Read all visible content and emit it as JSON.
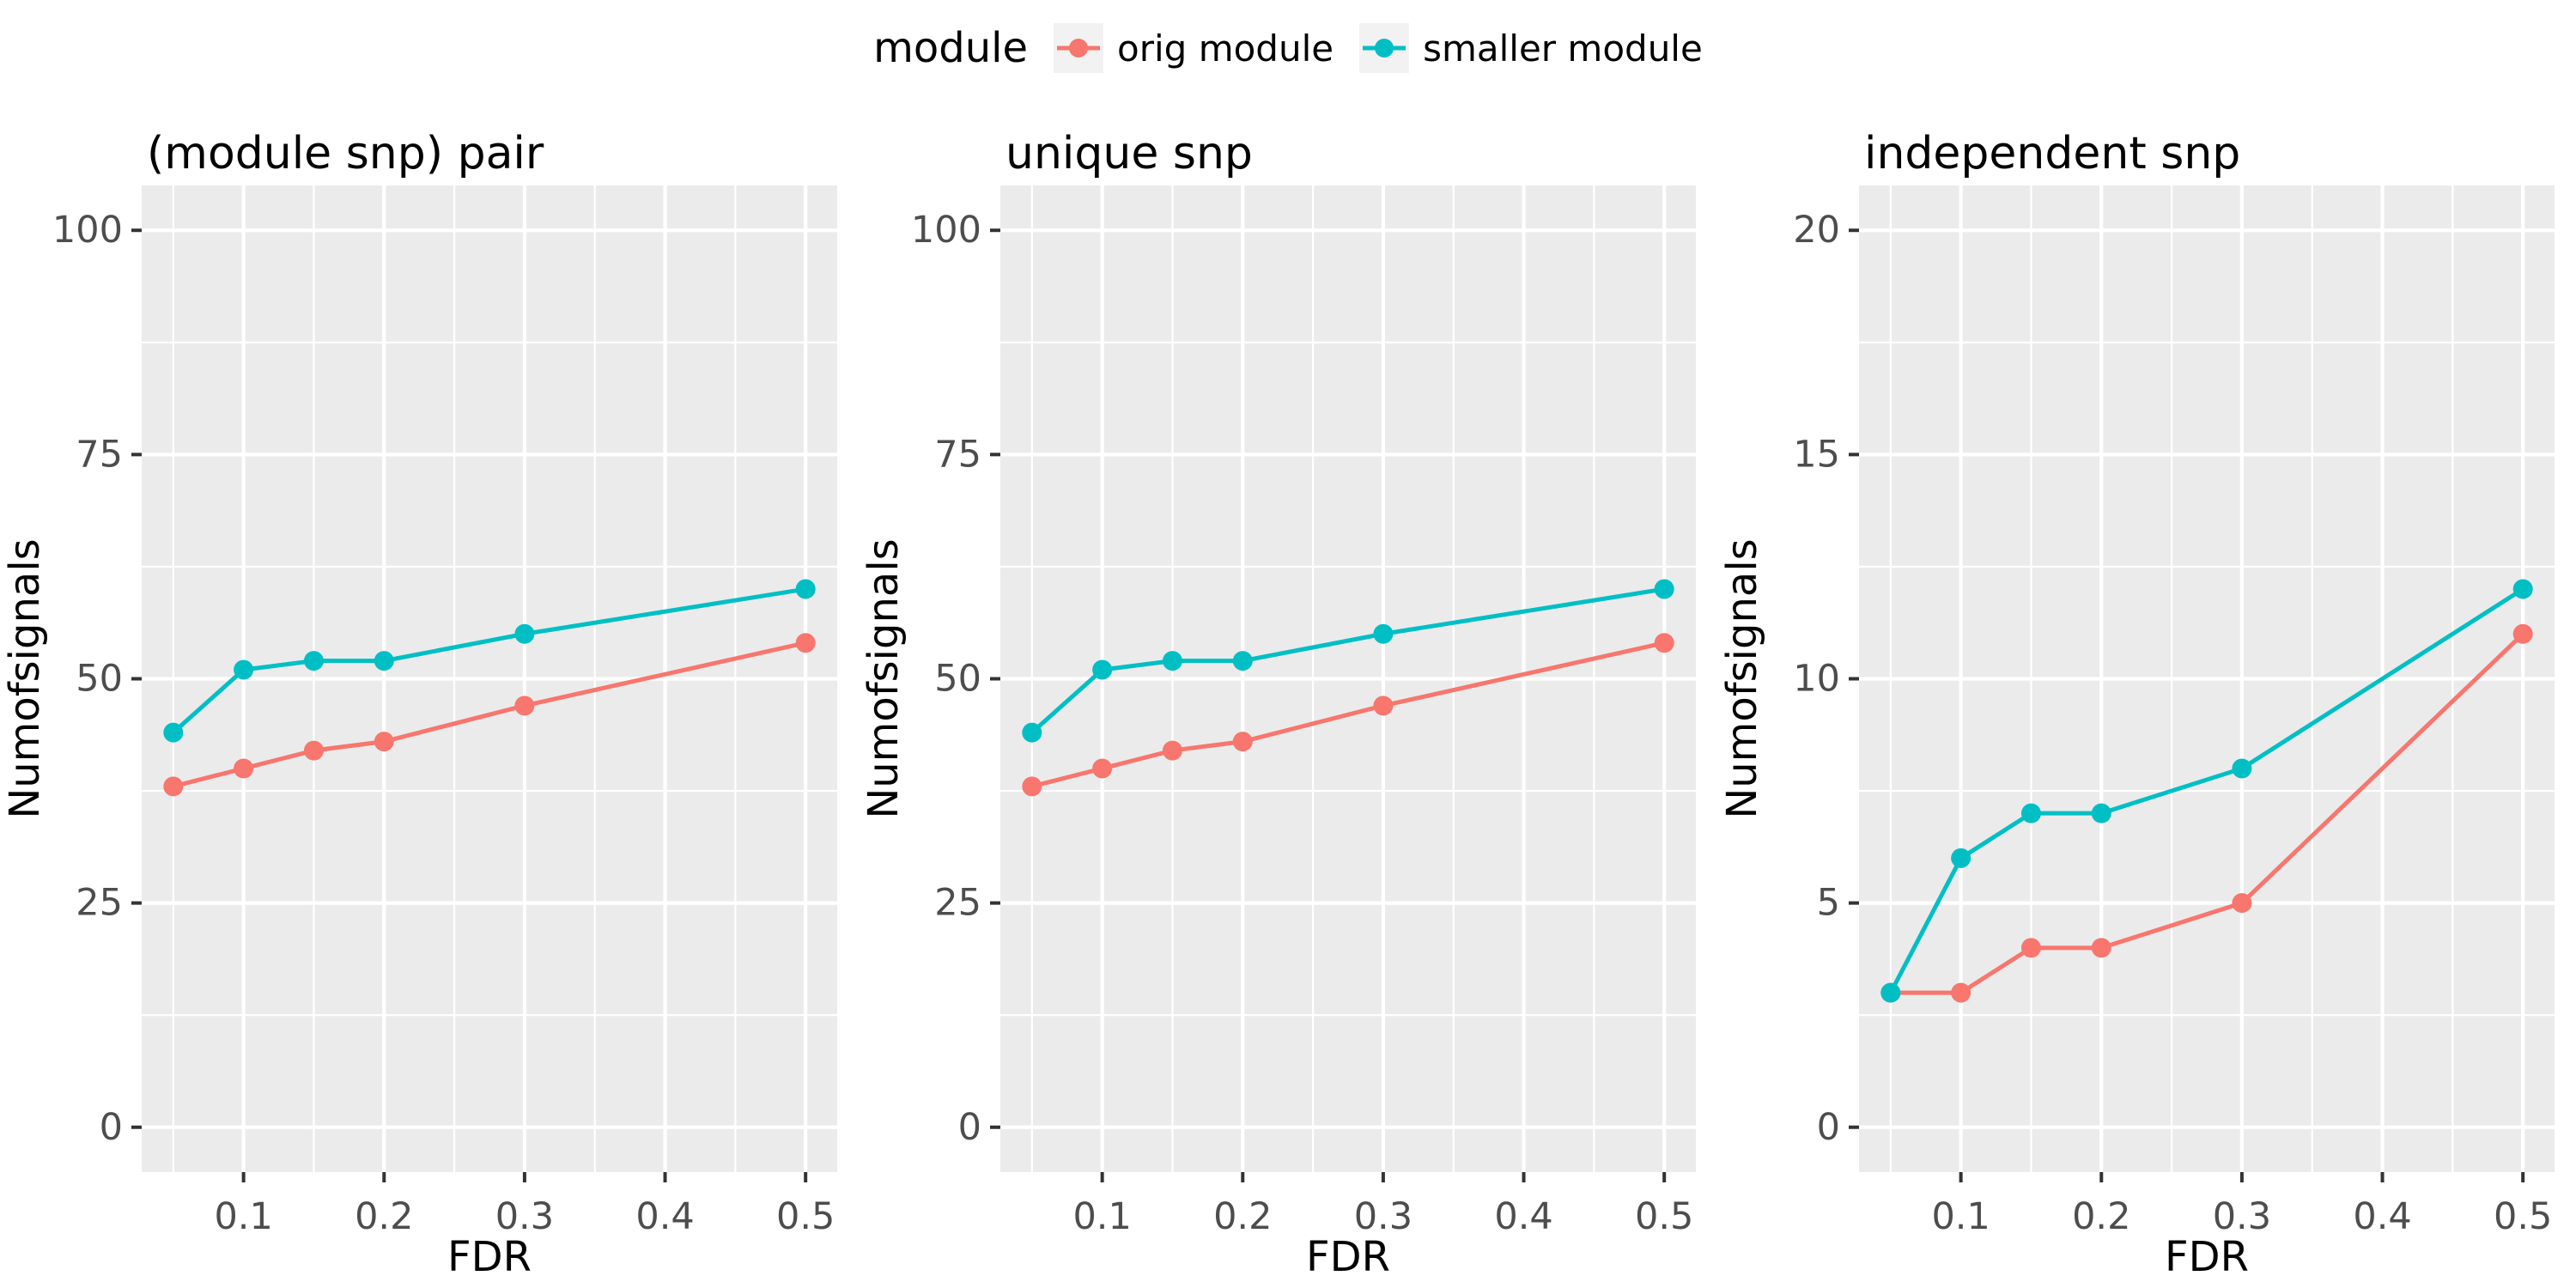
{
  "legend": {
    "title": "module",
    "items": [
      {
        "label": "orig module",
        "color": "#F8766D"
      },
      {
        "label": "smaller module",
        "color": "#00BFC4"
      }
    ]
  },
  "style": {
    "panel_bg": "#EBEBEB",
    "grid_color": "#FFFFFF",
    "tick_label_color": "#4D4D4D",
    "text_color": "#000000",
    "legend_key_bg": "#F2F2F2"
  },
  "chart_data": [
    {
      "type": "line",
      "title": "(module snp) pair",
      "xlabel": "FDR",
      "ylabel": "Numofsignals",
      "x": [
        0.05,
        0.1,
        0.15,
        0.2,
        0.3,
        0.5
      ],
      "series": [
        {
          "name": "orig module",
          "color": "#F8766D",
          "values": [
            38,
            40,
            42,
            43,
            47,
            54
          ]
        },
        {
          "name": "smaller module",
          "color": "#00BFC4",
          "values": [
            44,
            51,
            52,
            52,
            55,
            60
          ]
        }
      ],
      "xticks": [
        0.1,
        0.2,
        0.3,
        0.4,
        0.5
      ],
      "yticks": [
        0,
        25,
        50,
        75,
        100
      ],
      "xlim": [
        0.05,
        0.5
      ],
      "ylim": [
        0,
        100
      ],
      "grid": true,
      "legend_position": "top"
    },
    {
      "type": "line",
      "title": "unique snp",
      "xlabel": "FDR",
      "ylabel": "Numofsignals",
      "x": [
        0.05,
        0.1,
        0.15,
        0.2,
        0.3,
        0.5
      ],
      "series": [
        {
          "name": "orig module",
          "color": "#F8766D",
          "values": [
            38,
            40,
            42,
            43,
            47,
            54
          ]
        },
        {
          "name": "smaller module",
          "color": "#00BFC4",
          "values": [
            44,
            51,
            52,
            52,
            55,
            60
          ]
        }
      ],
      "xticks": [
        0.1,
        0.2,
        0.3,
        0.4,
        0.5
      ],
      "yticks": [
        0,
        25,
        50,
        75,
        100
      ],
      "xlim": [
        0.05,
        0.5
      ],
      "ylim": [
        0,
        100
      ],
      "grid": true,
      "legend_position": "top"
    },
    {
      "type": "line",
      "title": "independent snp",
      "xlabel": "FDR",
      "ylabel": "Numofsignals",
      "x": [
        0.05,
        0.1,
        0.15,
        0.2,
        0.3,
        0.5
      ],
      "series": [
        {
          "name": "orig module",
          "color": "#F8766D",
          "values": [
            3,
            3,
            4,
            4,
            5,
            11
          ]
        },
        {
          "name": "smaller module",
          "color": "#00BFC4",
          "values": [
            3,
            6,
            7,
            7,
            8,
            12
          ]
        }
      ],
      "xticks": [
        0.1,
        0.2,
        0.3,
        0.4,
        0.5
      ],
      "yticks": [
        0,
        5,
        10,
        15,
        20
      ],
      "xlim": [
        0.05,
        0.5
      ],
      "ylim": [
        0,
        20
      ],
      "grid": true,
      "legend_position": "top"
    }
  ]
}
